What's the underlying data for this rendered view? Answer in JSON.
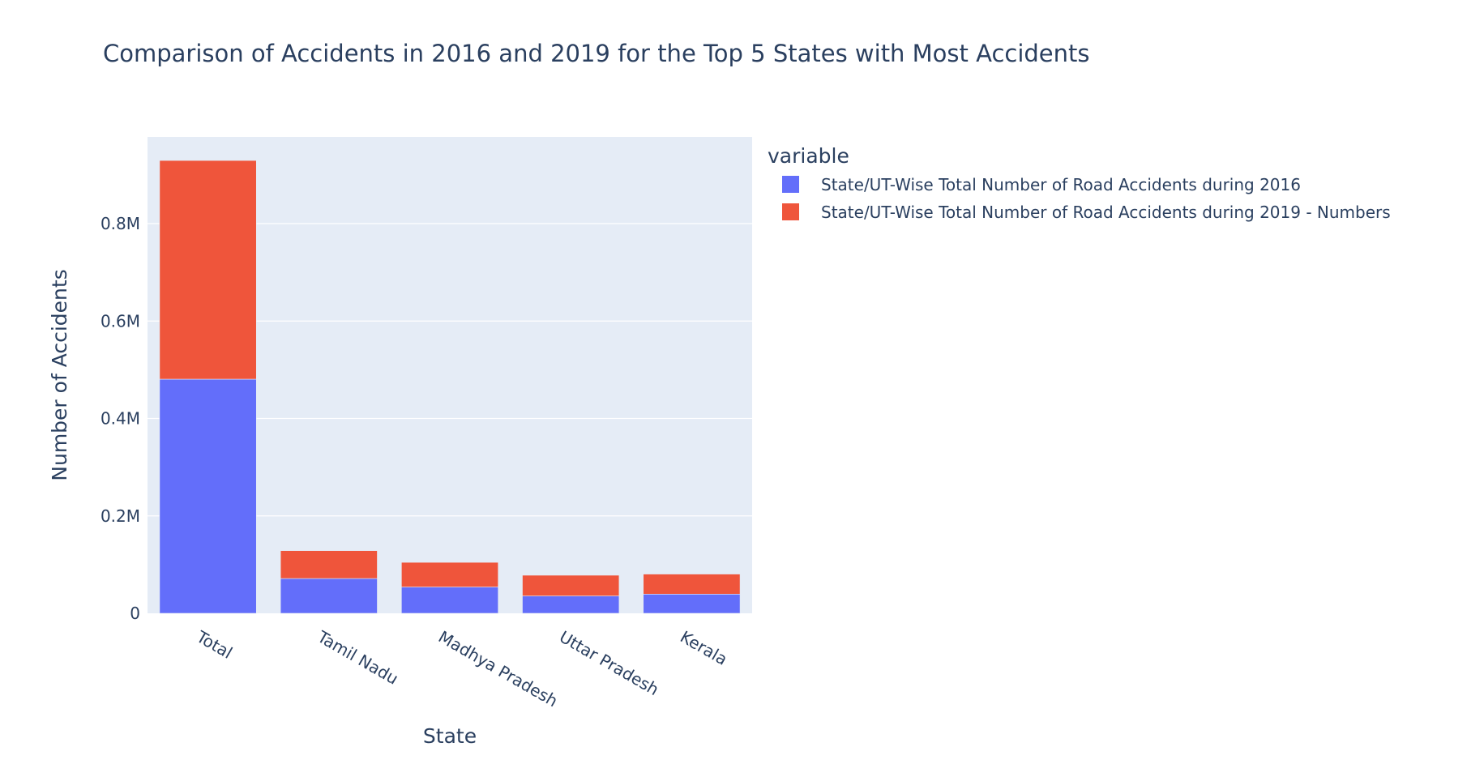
{
  "chart_data": {
    "type": "bar",
    "barmode": "stack",
    "title": "Comparison of Accidents in 2016 and 2019 for the Top 5 States with Most Accidents",
    "xlabel": "State",
    "ylabel": "Number of Accidents",
    "categories": [
      "Total",
      "Tamil Nadu",
      "Madhya Pradesh",
      "Uttar Pradesh",
      "Kerala"
    ],
    "series": [
      {
        "name": "State/UT-Wise Total Number of Road Accidents during 2016",
        "color": "#636efa",
        "values": [
          480652,
          71431,
          53972,
          35612,
          39420
        ]
      },
      {
        "name": "State/UT-Wise Total Number of Road Accidents during 2019 - Numbers",
        "color": "#ef553b",
        "values": [
          449002,
          57228,
          50669,
          42572,
          41111
        ]
      }
    ],
    "ylim": [
      0,
      978000
    ],
    "yticks": [
      0,
      200000,
      400000,
      600000,
      800000
    ],
    "ytick_labels": [
      "0",
      "0.2M",
      "0.4M",
      "0.6M",
      "0.8M"
    ],
    "legend": {
      "title": "variable",
      "position": "top-right"
    },
    "grid": true
  }
}
